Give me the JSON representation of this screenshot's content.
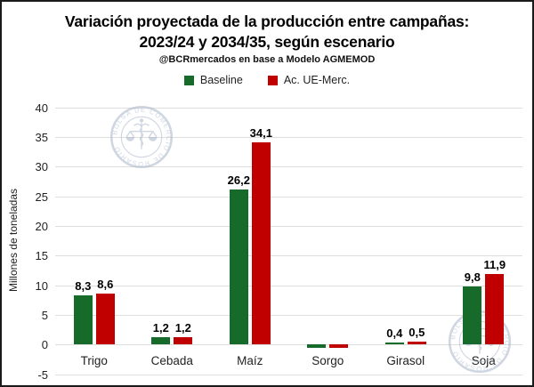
{
  "title_line1": "Variación proyectada de la producción entre campañas:",
  "title_line2": "2023/24 y 2034/35, según escenario",
  "subtitle": "@BCRmercados en base a Modelo AGMEMOD",
  "watermark": {
    "seal_text": "BOLSA DE COMERCIO DE ROSARIO",
    "color": "#a9b6c9"
  },
  "colors": {
    "baseline": "#176b2a",
    "scenario": "#c00000",
    "gridline": "#dedede",
    "text": "#222222"
  },
  "chart_data": {
    "type": "bar",
    "title": "Variación proyectada de la producción entre campañas: 2023/24 y 2034/35, según escenario",
    "subtitle": "@BCRmercados en base a Modelo AGMEMOD",
    "ylabel": "Millones de toneladas",
    "xlabel": "",
    "ylim": [
      -5,
      40
    ],
    "yticks": [
      "40",
      "35",
      "30",
      "25",
      "20",
      "15",
      "10",
      "5",
      "0",
      "-5"
    ],
    "ytick_values": [
      40,
      35,
      30,
      25,
      20,
      15,
      10,
      5,
      0,
      -5
    ],
    "grid": true,
    "legend_position": "top",
    "categories": [
      "Trigo",
      "Cebada",
      "Maíz",
      "Sorgo",
      "Girasol",
      "Soja"
    ],
    "series": [
      {
        "name": "Baseline",
        "color_key": "baseline",
        "values": [
          8.3,
          1.2,
          26.2,
          -0.6,
          0.4,
          9.8
        ],
        "labels": [
          "8,3",
          "1,2",
          "26,2",
          "",
          "0,4",
          "9,8"
        ]
      },
      {
        "name": "Ac. UE-Merc.",
        "color_key": "scenario",
        "values": [
          8.6,
          1.2,
          34.1,
          -0.6,
          0.5,
          11.9
        ],
        "labels": [
          "8,6",
          "1,2",
          "34,1",
          "",
          "0,5",
          "11,9"
        ]
      }
    ]
  }
}
